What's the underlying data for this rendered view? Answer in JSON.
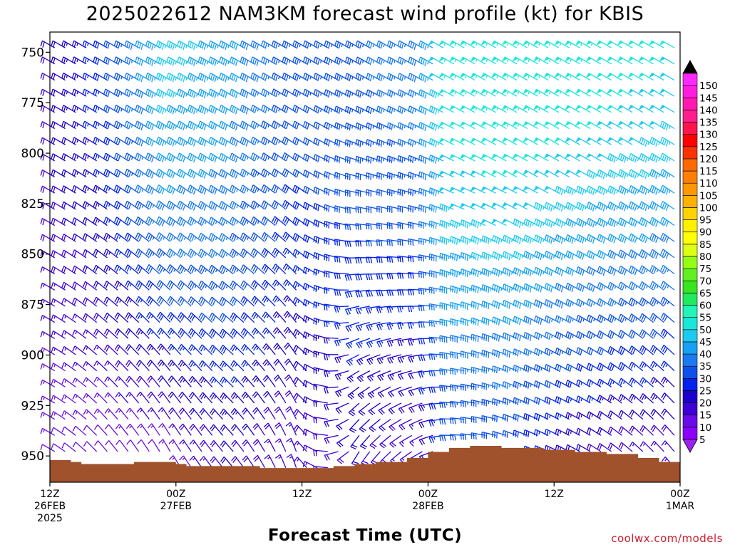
{
  "chart_data": {
    "type": "wind-barb time-height profile",
    "title": "2025022612 NAM3KM forecast wind profile (kt) for KBIS",
    "xlabel": "Forecast Time (UTC)",
    "ylabel": "",
    "units": "kt",
    "y_axis": {
      "quantity": "pressure (hPa)",
      "range": [
        740,
        963
      ],
      "direction": "decreasing upward",
      "ticks": [
        "750",
        "775",
        "800",
        "825",
        "850",
        "875",
        "900",
        "925",
        "950"
      ]
    },
    "x_axis": {
      "start": "2025-02-26 12Z",
      "end": "2025-03-01 00Z",
      "step_hours": 1,
      "ticks": [
        {
          "hour": 0,
          "lines": [
            "12Z",
            "26FEB",
            "2025"
          ]
        },
        {
          "hour": 12,
          "lines": [
            "00Z",
            "27FEB"
          ]
        },
        {
          "hour": 24,
          "lines": [
            "12Z"
          ]
        },
        {
          "hour": 36,
          "lines": [
            "00Z",
            "28FEB"
          ]
        },
        {
          "hour": 48,
          "lines": [
            "12Z"
          ]
        },
        {
          "hour": 60,
          "lines": [
            "00Z",
            "1MAR"
          ]
        }
      ]
    },
    "barb_hours": [
      1,
      2,
      3,
      4,
      5,
      6,
      7,
      8,
      9,
      10,
      11,
      12,
      13,
      14,
      15,
      16,
      17,
      18,
      19,
      20,
      21,
      22,
      23,
      24,
      25,
      26,
      27,
      28,
      29,
      30,
      31,
      32,
      33,
      34,
      35,
      36,
      37,
      38,
      39,
      40,
      41,
      42,
      43,
      44,
      45,
      46,
      47,
      48,
      49,
      50,
      51,
      52,
      53,
      54,
      55,
      56,
      57,
      58,
      59,
      60
    ],
    "barb_levels_hpa": [
      745,
      753,
      761,
      769,
      777,
      785,
      793,
      801,
      809,
      817,
      825,
      833,
      841,
      849,
      857,
      865,
      873,
      881,
      889,
      897,
      905,
      913,
      921,
      929,
      937,
      945,
      953
    ],
    "wind_field_keypoints": [
      {
        "hour": 1,
        "upper_speed_kt": 20,
        "upper_dir_deg": 300,
        "lower_speed_kt": 12,
        "lower_dir_deg": 300
      },
      {
        "hour": 6,
        "upper_speed_kt": 28,
        "upper_dir_deg": 300,
        "lower_speed_kt": 10,
        "lower_dir_deg": 320
      },
      {
        "hour": 12,
        "upper_speed_kt": 47,
        "upper_dir_deg": 300,
        "lower_speed_kt": 12,
        "lower_dir_deg": 330
      },
      {
        "hour": 18,
        "upper_speed_kt": 43,
        "upper_dir_deg": 300,
        "lower_speed_kt": 20,
        "lower_dir_deg": 320
      },
      {
        "hour": 24,
        "upper_speed_kt": 33,
        "upper_dir_deg": 300,
        "lower_speed_kt": 15,
        "lower_dir_deg": 340
      },
      {
        "hour": 30,
        "upper_speed_kt": 34,
        "upper_dir_deg": 300,
        "lower_speed_kt": 20,
        "lower_dir_deg": 210
      },
      {
        "hour": 36,
        "upper_speed_kt": 38,
        "upper_dir_deg": 300,
        "lower_speed_kt": 15,
        "lower_dir_deg": 240
      },
      {
        "hour": 39,
        "upper_speed_kt": 53,
        "upper_dir_deg": 300,
        "lower_speed_kt": 30,
        "lower_dir_deg": 270
      },
      {
        "hour": 45,
        "upper_speed_kt": 55,
        "upper_dir_deg": 300,
        "lower_speed_kt": 30,
        "lower_dir_deg": 290
      },
      {
        "hour": 52,
        "upper_speed_kt": 53,
        "upper_dir_deg": 300,
        "lower_speed_kt": 20,
        "lower_dir_deg": 300
      },
      {
        "hour": 60,
        "upper_speed_kt": 50,
        "upper_dir_deg": 300,
        "lower_speed_kt": 15,
        "lower_dir_deg": 320
      }
    ],
    "surface_pressure_hpa": [
      {
        "hour": 0,
        "p": 952
      },
      {
        "hour": 2,
        "p": 953
      },
      {
        "hour": 3,
        "p": 954
      },
      {
        "hour": 8,
        "p": 953
      },
      {
        "hour": 12,
        "p": 954
      },
      {
        "hour": 13,
        "p": 955
      },
      {
        "hour": 20,
        "p": 956
      },
      {
        "hour": 27,
        "p": 955
      },
      {
        "hour": 29,
        "p": 954
      },
      {
        "hour": 31,
        "p": 953
      },
      {
        "hour": 34,
        "p": 951
      },
      {
        "hour": 36,
        "p": 948
      },
      {
        "hour": 38,
        "p": 946
      },
      {
        "hour": 40,
        "p": 945
      },
      {
        "hour": 43,
        "p": 946
      },
      {
        "hour": 47,
        "p": 947
      },
      {
        "hour": 50,
        "p": 948
      },
      {
        "hour": 53,
        "p": 949
      },
      {
        "hour": 56,
        "p": 951
      },
      {
        "hour": 58,
        "p": 953
      },
      {
        "hour": 60,
        "p": 955
      }
    ],
    "colorbar": {
      "labels": [
        "5",
        "10",
        "15",
        "20",
        "25",
        "30",
        "35",
        "40",
        "45",
        "50",
        "55",
        "60",
        "65",
        "70",
        "75",
        "80",
        "85",
        "90",
        "95",
        "100",
        "105",
        "110",
        "115",
        "120",
        "125",
        "130",
        "135",
        "140",
        "145",
        "150"
      ],
      "colors": [
        "#8b00ff",
        "#6a0ce8",
        "#3f00d8",
        "#1d00cc",
        "#0022ee",
        "#0c52e8",
        "#1a7af0",
        "#17a1f2",
        "#1dcbf0",
        "#18e8d8",
        "#1ff6b8",
        "#22ea5e",
        "#38e620",
        "#62f020",
        "#94ff14",
        "#dcff14",
        "#ffff00",
        "#fff000",
        "#ffd200",
        "#ffb000",
        "#ff9800",
        "#ff8000",
        "#ff6a00",
        "#ff3200",
        "#ff0000",
        "#ff1450",
        "#ff1e8c",
        "#ff19b2",
        "#ff1ee0",
        "#ff28ff"
      ],
      "under_color": "#a020f0",
      "over_color": "#000000"
    },
    "terrain_color": "#a0522d",
    "grid": false
  },
  "credit": "coolwx.com/models"
}
